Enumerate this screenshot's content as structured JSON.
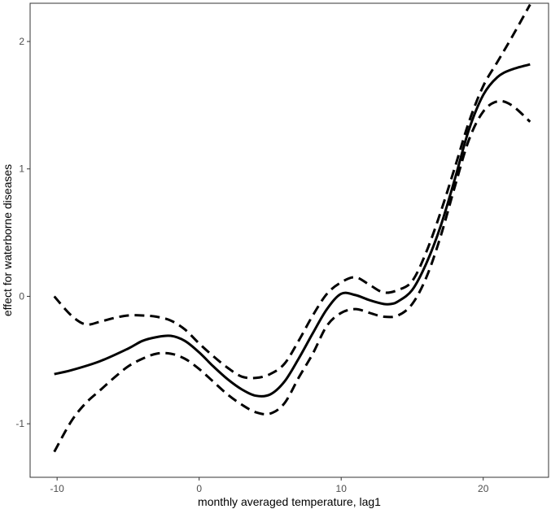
{
  "chart_data": {
    "type": "line",
    "title": "",
    "xlabel": "monthly averaged temperature, lag1",
    "ylabel": "effect for waterborne diseases",
    "xlim": [
      -11.9,
      24.6
    ],
    "ylim": [
      -1.42,
      2.3
    ],
    "x_ticks": [
      -10,
      0,
      10,
      20
    ],
    "y_ticks": [
      -1,
      0,
      1,
      2
    ],
    "x_tick_labels": [
      "-10",
      "0",
      "10",
      "20"
    ],
    "y_tick_labels": [
      "-1",
      "0",
      "1",
      "2"
    ],
    "grid": false,
    "legend": "none",
    "series": [
      {
        "role": "estimate",
        "style": "solid",
        "color": "#000000",
        "x": [
          -10.2,
          -9,
          -7,
          -5,
          -4,
          -3,
          -2,
          -1,
          0,
          1,
          2,
          3,
          4,
          5,
          6,
          7,
          8,
          9,
          10,
          11,
          12,
          13,
          13.5,
          14,
          15,
          16,
          17,
          18,
          19,
          20,
          21,
          22,
          23.3
        ],
        "y": [
          -0.61,
          -0.58,
          -0.51,
          -0.41,
          -0.35,
          -0.32,
          -0.31,
          -0.35,
          -0.44,
          -0.55,
          -0.65,
          -0.73,
          -0.78,
          -0.77,
          -0.67,
          -0.49,
          -0.29,
          -0.1,
          0.02,
          0.01,
          -0.03,
          -0.06,
          -0.06,
          -0.04,
          0.05,
          0.26,
          0.55,
          0.92,
          1.31,
          1.58,
          1.72,
          1.78,
          1.82
        ]
      },
      {
        "role": "upper-bound",
        "style": "dashed",
        "color": "#000000",
        "x": [
          -10.2,
          -9,
          -8,
          -7,
          -6,
          -5,
          -4,
          -3,
          -2,
          -1,
          0,
          1,
          2,
          3,
          4,
          5,
          6,
          7,
          8,
          9,
          10,
          11,
          12,
          13,
          14,
          15,
          16,
          17,
          18,
          19,
          20,
          21,
          22,
          23.3
        ],
        "y": [
          0.0,
          -0.15,
          -0.22,
          -0.2,
          -0.17,
          -0.15,
          -0.15,
          -0.16,
          -0.19,
          -0.26,
          -0.37,
          -0.47,
          -0.56,
          -0.63,
          -0.64,
          -0.61,
          -0.53,
          -0.35,
          -0.15,
          0.02,
          0.11,
          0.15,
          0.09,
          0.03,
          0.05,
          0.12,
          0.35,
          0.66,
          1.01,
          1.37,
          1.65,
          1.84,
          2.03,
          2.29
        ]
      },
      {
        "role": "lower-bound",
        "style": "dashed",
        "color": "#000000",
        "x": [
          -10.2,
          -9,
          -8,
          -7,
          -6,
          -5,
          -4,
          -3,
          -2,
          -1,
          0,
          1,
          2,
          3,
          4,
          5,
          6,
          7,
          8,
          9,
          10,
          11,
          12,
          13,
          14,
          15,
          16,
          17,
          18,
          19,
          20,
          21,
          22,
          23.3
        ],
        "y": [
          -1.22,
          -0.98,
          -0.84,
          -0.74,
          -0.64,
          -0.55,
          -0.49,
          -0.45,
          -0.45,
          -0.49,
          -0.57,
          -0.67,
          -0.77,
          -0.85,
          -0.91,
          -0.92,
          -0.84,
          -0.64,
          -0.45,
          -0.23,
          -0.13,
          -0.1,
          -0.13,
          -0.16,
          -0.15,
          -0.06,
          0.15,
          0.47,
          0.86,
          1.23,
          1.45,
          1.53,
          1.5,
          1.37
        ]
      }
    ]
  }
}
